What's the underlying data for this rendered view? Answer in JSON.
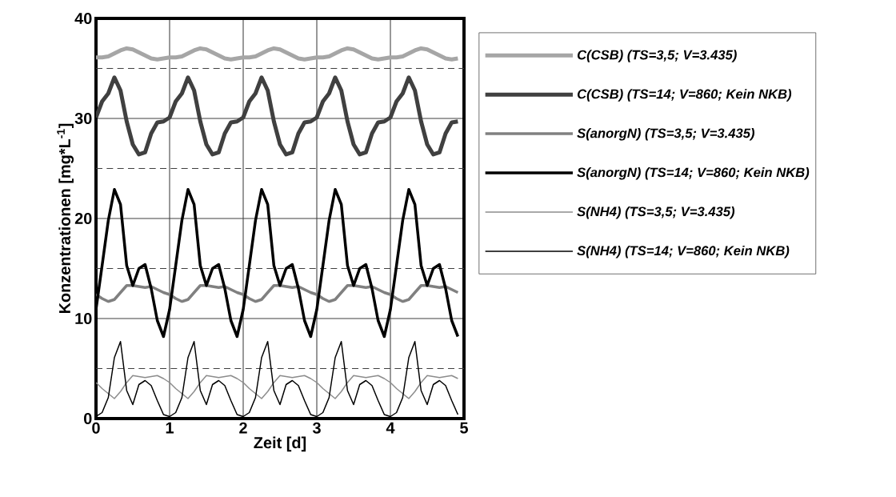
{
  "chart_data": {
    "type": "line",
    "xlabel": "Zeit [d]",
    "ylabel": "Konzentrationen   [mg*L$^{-1}$]",
    "x": [
      0,
      0.083,
      0.167,
      0.25,
      0.333,
      0.417,
      0.5,
      0.583,
      0.667,
      0.75,
      0.833,
      0.917,
      1,
      1.083,
      1.167,
      1.25,
      1.333,
      1.417,
      1.5,
      1.583,
      1.667,
      1.75,
      1.833,
      1.917,
      2,
      2.083,
      2.167,
      2.25,
      2.333,
      2.417,
      2.5,
      2.583,
      2.667,
      2.75,
      2.833,
      2.917,
      3,
      3.083,
      3.167,
      3.25,
      3.333,
      3.417,
      3.5,
      3.583,
      3.667,
      3.75,
      3.833,
      3.917,
      4,
      4.083,
      4.167,
      4.25,
      4.333,
      4.417,
      4.5,
      4.583,
      4.667,
      4.75,
      4.833,
      4.917
    ],
    "xlim": [
      0,
      5
    ],
    "xticks": [
      0,
      1,
      2,
      3,
      4,
      5
    ],
    "ylim": [
      0,
      40
    ],
    "yticks": [
      0,
      10,
      20,
      30,
      40
    ],
    "grid": true,
    "legend": "right",
    "marker": "none",
    "line_style": "solid",
    "ref_lines": [
      {
        "axis": "y",
        "value": 35,
        "color": "#404040",
        "line_style": "dashed"
      },
      {
        "axis": "y",
        "value": 25,
        "color": "#404040",
        "line_style": "dashed"
      },
      {
        "axis": "y",
        "value": 15,
        "color": "#404040",
        "line_style": "dashed"
      },
      {
        "axis": "y",
        "value": 5,
        "color": "#404040",
        "line_style": "dashed"
      }
    ],
    "series": [
      {
        "name": "C(CSB) (TS=3,5; V=3.435)",
        "color": "#a6a6a6",
        "values": [
          36.1,
          36.1,
          36.2,
          36.5,
          36.8,
          37.0,
          36.9,
          36.6,
          36.3,
          36.0,
          35.9,
          36.0,
          36.1,
          36.1,
          36.2,
          36.5,
          36.8,
          37.0,
          36.9,
          36.6,
          36.3,
          36.0,
          35.9,
          36.0,
          36.1,
          36.1,
          36.2,
          36.5,
          36.8,
          37.0,
          36.9,
          36.6,
          36.3,
          36.0,
          35.9,
          36.0,
          36.1,
          36.1,
          36.2,
          36.5,
          36.8,
          37.0,
          36.9,
          36.6,
          36.3,
          36.0,
          35.9,
          36.0,
          36.1,
          36.1,
          36.2,
          36.5,
          36.8,
          37.0,
          36.9,
          36.6,
          36.3,
          36.0,
          35.9,
          36.0
        ]
      },
      {
        "name": "C(CSB) (TS=14; V=860; Kein NKB)",
        "color": "#404040",
        "values": [
          30.1,
          31.7,
          32.5,
          34.1,
          32.8,
          29.7,
          27.4,
          26.4,
          26.6,
          28.5,
          29.6,
          29.7,
          30.1,
          31.7,
          32.5,
          34.1,
          32.8,
          29.7,
          27.4,
          26.4,
          26.6,
          28.5,
          29.6,
          29.7,
          30.1,
          31.7,
          32.5,
          34.1,
          32.8,
          29.7,
          27.4,
          26.4,
          26.6,
          28.5,
          29.6,
          29.7,
          30.1,
          31.7,
          32.5,
          34.1,
          32.8,
          29.7,
          27.4,
          26.4,
          26.6,
          28.5,
          29.6,
          29.7,
          30.1,
          31.7,
          32.5,
          34.1,
          32.8,
          29.7,
          27.4,
          26.4,
          26.6,
          28.5,
          29.6,
          29.7
        ]
      },
      {
        "name": "S(anorgN) (TS=3,5; V=3.435)",
        "color": "#808080",
        "values": [
          12.4,
          12.0,
          11.7,
          11.9,
          12.6,
          13.3,
          13.3,
          13.2,
          13.1,
          13.2,
          12.9,
          12.6,
          12.4,
          12.0,
          11.7,
          11.9,
          12.6,
          13.3,
          13.3,
          13.2,
          13.1,
          13.2,
          12.9,
          12.6,
          12.4,
          12.0,
          11.7,
          11.9,
          12.6,
          13.3,
          13.3,
          13.2,
          13.1,
          13.2,
          12.9,
          12.6,
          12.4,
          12.0,
          11.7,
          11.9,
          12.6,
          13.3,
          13.3,
          13.2,
          13.1,
          13.2,
          12.9,
          12.6,
          12.4,
          12.0,
          11.7,
          11.9,
          12.6,
          13.3,
          13.3,
          13.2,
          13.1,
          13.2,
          12.9,
          12.6
        ]
      },
      {
        "name": "S(anorgN) (TS=14; V=860; Kein NKB)",
        "color": "#000000",
        "values": [
          10.9,
          15.3,
          19.8,
          22.9,
          21.4,
          15.3,
          13.3,
          15.0,
          15.4,
          13.0,
          9.8,
          8.2,
          10.9,
          15.3,
          19.8,
          22.9,
          21.4,
          15.3,
          13.3,
          15.0,
          15.4,
          13.0,
          9.8,
          8.2,
          10.9,
          15.3,
          19.8,
          22.9,
          21.4,
          15.3,
          13.3,
          15.0,
          15.4,
          13.0,
          9.8,
          8.2,
          10.9,
          15.3,
          19.8,
          22.9,
          21.4,
          15.3,
          13.3,
          15.0,
          15.4,
          13.0,
          9.8,
          8.2,
          10.9,
          15.3,
          19.8,
          22.9,
          21.4,
          15.3,
          13.3,
          15.0,
          15.4,
          13.0,
          9.8,
          8.2
        ]
      },
      {
        "name": "S(NH4) (TS=3,5; V=3.435)",
        "color": "#8c8c8c",
        "values": [
          3.6,
          3.0,
          2.5,
          2.0,
          2.7,
          3.6,
          4.3,
          4.2,
          4.1,
          4.2,
          4.3,
          4.0,
          3.6,
          3.0,
          2.5,
          2.0,
          2.7,
          3.6,
          4.3,
          4.2,
          4.1,
          4.2,
          4.3,
          4.0,
          3.6,
          3.0,
          2.5,
          2.0,
          2.7,
          3.6,
          4.3,
          4.2,
          4.1,
          4.2,
          4.3,
          4.0,
          3.6,
          3.0,
          2.5,
          2.0,
          2.7,
          3.6,
          4.3,
          4.2,
          4.1,
          4.2,
          4.3,
          4.0,
          3.6,
          3.0,
          2.5,
          2.0,
          2.7,
          3.6,
          4.3,
          4.2,
          4.1,
          4.2,
          4.3,
          4.0
        ]
      },
      {
        "name": "S(NH4) (TS=14; V=860; Kein NKB)",
        "color": "#000000",
        "values": [
          0.2,
          0.6,
          2.1,
          6.1,
          7.7,
          2.8,
          1.4,
          3.4,
          3.8,
          3.3,
          1.8,
          0.4,
          0.2,
          0.6,
          2.1,
          6.1,
          7.7,
          2.8,
          1.4,
          3.4,
          3.8,
          3.3,
          1.8,
          0.4,
          0.2,
          0.6,
          2.1,
          6.1,
          7.7,
          2.8,
          1.4,
          3.4,
          3.8,
          3.3,
          1.8,
          0.4,
          0.2,
          0.6,
          2.1,
          6.1,
          7.7,
          2.8,
          1.4,
          3.4,
          3.8,
          3.3,
          1.8,
          0.4,
          0.2,
          0.6,
          2.1,
          6.1,
          7.7,
          2.8,
          1.4,
          3.4,
          3.8,
          3.3,
          1.8,
          0.4
        ]
      }
    ]
  }
}
